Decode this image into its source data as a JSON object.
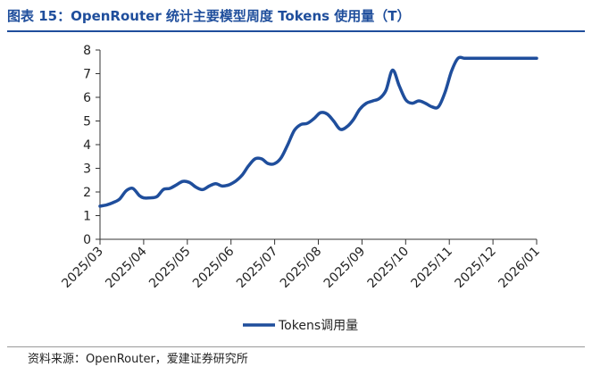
{
  "figure": {
    "title": "图表 15：OpenRouter 统计主要模型周度 Tokens 使用量（T）",
    "source": "资料来源：OpenRouter，爱建证券研究所"
  },
  "colors": {
    "series": "#1f4e9c",
    "title": "#1f4e9c",
    "axis": "#333333",
    "text": "#222222"
  },
  "chart_data": {
    "type": "line",
    "title": "OpenRouter 统计主要模型周度 Tokens 使用量（T）",
    "xlabel": "",
    "ylabel": "",
    "ylim": [
      0,
      8
    ],
    "yticks": [
      0,
      1,
      2,
      3,
      4,
      5,
      6,
      7,
      8
    ],
    "xlim": [
      0,
      10
    ],
    "categories": [
      "2025/03",
      "2025/04",
      "2025/05",
      "2025/06",
      "2025/07",
      "2025/08",
      "2025/09",
      "2025/10",
      "2025/11",
      "2025/12",
      "2026/01"
    ],
    "grid": false,
    "legend": "bottom-center",
    "series": [
      {
        "name": "Tokens调用量",
        "x": [
          0,
          0.15,
          0.3,
          0.45,
          0.6,
          0.75,
          0.9,
          1.0,
          1.15,
          1.3,
          1.45,
          1.6,
          1.75,
          1.9,
          2.05,
          2.2,
          2.35,
          2.5,
          2.65,
          2.8,
          2.95,
          3.1,
          3.25,
          3.4,
          3.55,
          3.7,
          3.85,
          4.0,
          4.15,
          4.3,
          4.45,
          4.6,
          4.75,
          4.9,
          5.05,
          5.2,
          5.35,
          5.5,
          5.65,
          5.8,
          5.95,
          6.1,
          6.25,
          6.4,
          6.55,
          6.7,
          6.85,
          7.0,
          7.15,
          7.3,
          7.45,
          7.6,
          7.75,
          7.9,
          8.05,
          8.2,
          8.35,
          8.5,
          8.65,
          8.8,
          8.95,
          9.1,
          9.25,
          9.4,
          9.55,
          9.7,
          9.85,
          10.0
        ],
        "values": [
          1.4,
          1.45,
          1.55,
          1.7,
          2.05,
          2.15,
          1.85,
          1.75,
          1.75,
          1.8,
          2.1,
          2.15,
          2.3,
          2.45,
          2.4,
          2.2,
          2.1,
          2.25,
          2.35,
          2.25,
          2.3,
          2.45,
          2.7,
          3.1,
          3.4,
          3.4,
          3.2,
          3.2,
          3.45,
          4.0,
          4.6,
          4.85,
          4.9,
          5.1,
          5.35,
          5.3,
          5.0,
          4.65,
          4.75,
          5.05,
          5.5,
          5.75,
          5.85,
          5.95,
          6.3,
          7.15,
          6.5,
          5.9,
          5.75,
          5.85,
          5.75,
          5.6,
          5.6,
          6.2,
          7.1,
          7.65,
          7.65,
          7.65,
          7.65,
          7.65,
          7.65,
          7.65,
          7.65,
          7.65,
          7.65,
          7.65,
          7.65,
          7.65
        ]
      }
    ]
  }
}
